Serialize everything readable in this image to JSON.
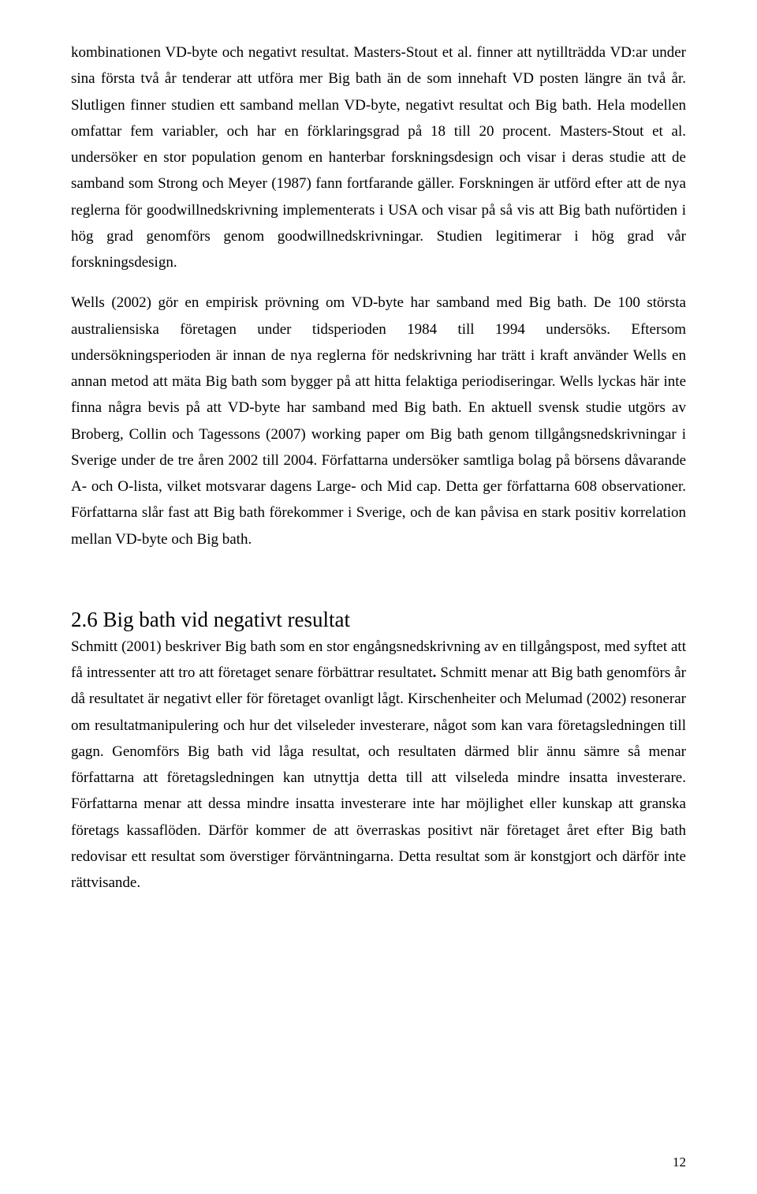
{
  "paragraphs": {
    "p1": "kombinationen VD-byte och negativt resultat. Masters-Stout et al. finner att nytillträdda VD:ar under sina första två år tenderar att utföra mer Big bath än de som innehaft VD posten längre än två år. Slutligen finner studien ett samband mellan VD-byte, negativt resultat och Big bath. Hela modellen omfattar fem variabler, och har en förklaringsgrad på 18 till 20 procent. Masters-Stout et al. undersöker en stor population genom en hanterbar forskningsdesign och visar i deras studie att de samband som Strong och Meyer (1987) fann fortfarande gäller. Forskningen är utförd efter att de nya reglerna för goodwillnedskrivning implementerats i USA och visar på så vis att Big bath nuförtiden i hög grad genomförs genom goodwillnedskrivningar. Studien legitimerar i hög grad vår forskningsdesign.",
    "p2": "Wells (2002) gör en empirisk prövning om VD-byte har samband med Big bath. De 100 största australiensiska företagen under tidsperioden 1984 till 1994 undersöks. Eftersom undersökningsperioden är innan de nya reglerna för nedskrivning har trätt i kraft använder Wells en annan metod att mäta Big bath som bygger på att hitta felaktiga periodiseringar. Wells lyckas här inte finna några bevis på att VD-byte har samband med Big bath. En aktuell svensk studie utgörs av Broberg, Collin och Tagessons (2007) working paper om Big bath genom tillgångsnedskrivningar i Sverige under de tre åren 2002 till 2004. Författarna undersöker samtliga bolag på börsens dåvarande A- och O-lista, vilket motsvarar dagens Large- och Mid cap. Detta ger författarna 608 observationer. Författarna slår fast att Big bath förekommer i Sverige, och de kan påvisa en stark positiv korrelation mellan VD-byte och Big bath.",
    "p3a": "Schmitt (2001) beskriver Big bath som en stor engångsnedskrivning av en tillgångspost, med syftet att få intressenter att tro att företaget senare förbättrar resultatet",
    "p3b": " Schmitt menar att Big bath genomförs år då resultatet är negativt eller för företaget ovanligt lågt. Kirschenheiter och Melumad (2002) resonerar om resultatmanipulering och hur det vilseleder investerare, något som kan vara företagsledningen till gagn. Genomförs Big bath vid låga resultat, och resultaten därmed blir ännu sämre så menar författarna att företagsledningen kan utnyttja detta till att vilseleda mindre insatta investerare. Författarna menar att dessa mindre insatta investerare inte har möjlighet eller kunskap att granska företags kassaflöden. Därför kommer de att överraskas positivt när företaget året efter Big bath redovisar ett resultat som överstiger förväntningarna.  Detta resultat som är konstgjort och därför inte rättvisande."
  },
  "heading": "2.6 Big bath vid negativt resultat",
  "pageNumber": "12",
  "boldDot": "."
}
